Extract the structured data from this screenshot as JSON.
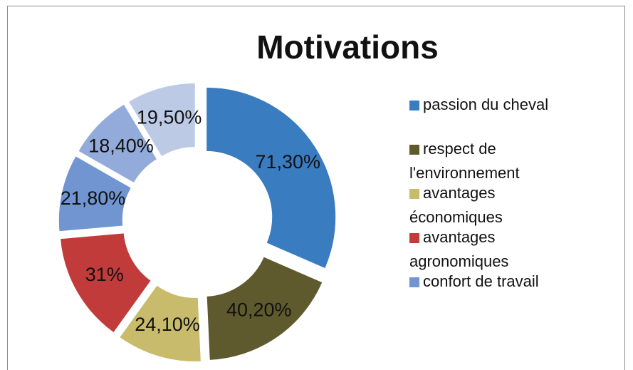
{
  "chart_data": {
    "type": "doughnut",
    "title": "Motivations",
    "categories": [
      "passion du cheval",
      "respect de l'environnement",
      "avantages économiques",
      "avantages agronomiques",
      "confort de travail",
      null,
      null
    ],
    "values": [
      71.3,
      40.2,
      24.1,
      31,
      21.8,
      18.4,
      19.5
    ],
    "value_labels": [
      "71,30%",
      "40,20%",
      "24,10%",
      "31%",
      "21,80%",
      "18,40%",
      "19,50%"
    ],
    "colors": [
      "#3a7cc0",
      "#5e5a2e",
      "#c8bb6c",
      "#c23b3b",
      "#7095d0",
      "#93abda",
      "#bccae6"
    ],
    "legend": "right"
  }
}
